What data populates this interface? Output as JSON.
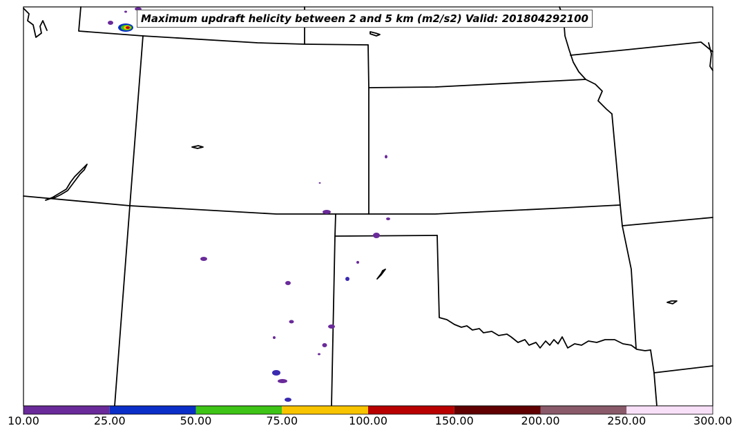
{
  "title": "Maximum updraft helicity between 2 and 5 km (m2/s2) Valid: 201804292100",
  "colorbar": {
    "ticks": [
      "10.00",
      "25.00",
      "50.00",
      "75.00",
      "100.00",
      "150.00",
      "200.00",
      "250.00",
      "300.00"
    ],
    "bins": [
      {
        "range": "10.00-25.00",
        "color": "#6a2a9a"
      },
      {
        "range": "25.00-50.00",
        "color": "#0a2ec8"
      },
      {
        "range": "50.00-75.00",
        "color": "#3ec416"
      },
      {
        "range": "75.00-100.00",
        "color": "#f8c400"
      },
      {
        "range": "100.00-150.00",
        "color": "#b80000"
      },
      {
        "range": "150.00-200.00",
        "color": "#600000"
      },
      {
        "range": "200.00-250.00",
        "color": "#8a5a6a"
      },
      {
        "range": "250.00-300.00",
        "color": "#f8e0f8"
      }
    ]
  }
}
